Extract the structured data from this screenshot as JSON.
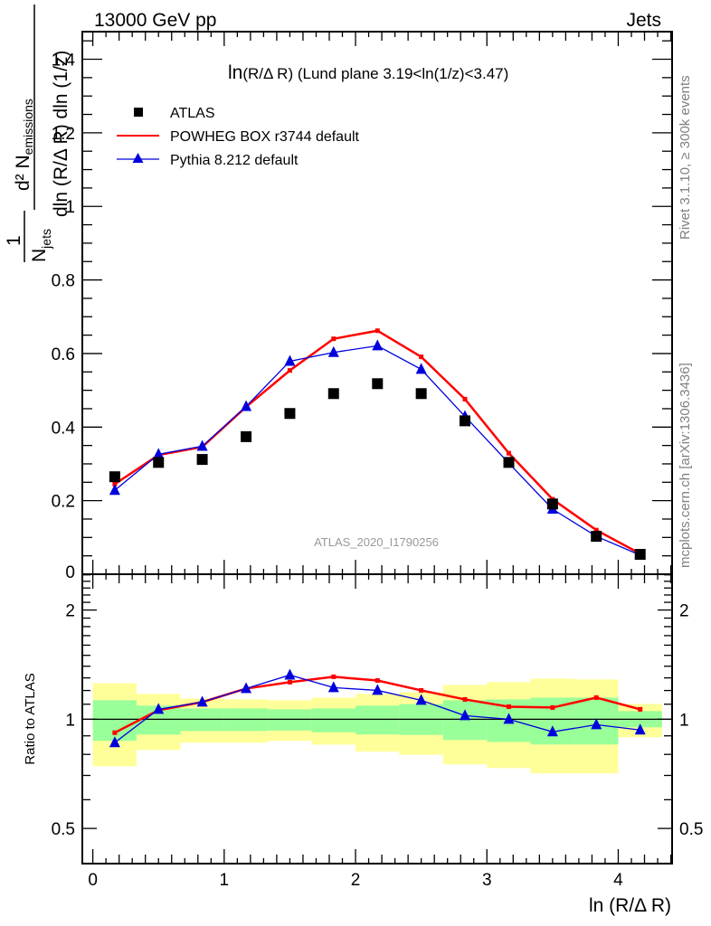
{
  "header": {
    "left_label": "13000 GeV pp",
    "right_label": "Jets"
  },
  "side_text": {
    "rivet": "Rivet 3.1.10, ≥ 300k events",
    "mcplots": "mcplots.cern.ch [arXiv:1306.3436]"
  },
  "watermark": "ATLAS_2020_I1790256",
  "colors": {
    "data": "#000000",
    "powheg": "#ff0000",
    "pythia": "#0000dd",
    "band_inner": "#99ff99",
    "band_outer": "#ffff99",
    "watermark": "#999999",
    "side_text": "#808080"
  },
  "chart_data": [
    {
      "type": "scatter",
      "title": "ln(R/Δ R) (Lund plane 3.19<ln(1/z)<3.47)",
      "title_parts": {
        "prefix": "ln",
        "rest": "(R/Δ R) (Lund plane 3.19<ln(1/z)<3.47)"
      },
      "xlabel": "ln (R/Δ R)",
      "ylabel": {
        "numerator_1": "1",
        "den_1": "N",
        "den_1_sub": "jets",
        "numerator_2": "d² N",
        "numerator_2_sub": "emissions",
        "denominator_2": "dln (R/Δ R) dln (1/z)"
      },
      "xlim": [
        -0.08,
        4.41
      ],
      "ylim": [
        0,
        1.475
      ],
      "yticks_major": [
        0,
        0.2,
        0.4,
        0.6,
        0.8,
        1,
        1.2,
        1.4
      ],
      "ytick_labels": [
        "0",
        "0.2",
        "0.4",
        "0.6",
        "0.8",
        "1",
        "1.2",
        "1.4"
      ],
      "x": [
        0.167,
        0.5,
        0.833,
        1.167,
        1.5,
        1.833,
        2.167,
        2.5,
        2.833,
        3.167,
        3.5,
        3.833,
        4.167
      ],
      "legend": {
        "placement": "top-left",
        "entries": [
          {
            "name": "ATLAS",
            "marker": "square"
          },
          {
            "name": "POWHEG BOX r3744 default",
            "marker": "line"
          },
          {
            "name": "Pythia 8.212 default",
            "marker": "triangle"
          }
        ]
      },
      "series": [
        {
          "name": "ATLAS",
          "style": "square",
          "values": [
            0.265,
            0.304,
            0.312,
            0.374,
            0.437,
            0.491,
            0.518,
            0.491,
            0.417,
            0.304,
            0.191,
            0.103,
            0.054
          ]
        },
        {
          "name": "POWHEG BOX r3744 default",
          "style": "line",
          "values": [
            0.245,
            0.324,
            0.346,
            0.455,
            0.554,
            0.64,
            0.662,
            0.591,
            0.476,
            0.329,
            0.204,
            0.12,
            0.056
          ]
        },
        {
          "name": "Pythia 8.212 default",
          "style": "triangle",
          "values": [
            0.228,
            0.326,
            0.348,
            0.456,
            0.579,
            0.603,
            0.621,
            0.557,
            0.429,
            0.302,
            0.177,
            0.103,
            0.052
          ]
        }
      ]
    },
    {
      "type": "line",
      "title": "",
      "xlabel": "ln (R/Δ R)",
      "ylabel": "Ratio to ATLAS",
      "yscale": "log",
      "xlim": [
        -0.08,
        4.41
      ],
      "ylim": [
        0.4,
        2.51
      ],
      "xticks": [
        0,
        1,
        2,
        3,
        4
      ],
      "xtick_labels": [
        "0",
        "1",
        "2",
        "3",
        "4"
      ],
      "yticks_labeled": [
        0.5,
        1,
        2
      ],
      "ytick_labels": [
        "0.5",
        "1",
        "2"
      ],
      "reference_line": 1,
      "bin_edges": [
        0,
        0.333,
        0.667,
        1.0,
        1.333,
        1.667,
        2.0,
        2.333,
        2.667,
        3.0,
        3.333,
        3.667,
        4.0,
        4.333
      ],
      "x": [
        0.167,
        0.5,
        0.833,
        1.167,
        1.5,
        1.833,
        2.167,
        2.5,
        2.833,
        3.167,
        3.5,
        3.833,
        4.167
      ],
      "bands": {
        "inner_green": {
          "lo": [
            0.872,
            0.907,
            0.928,
            0.928,
            0.931,
            0.921,
            0.908,
            0.905,
            0.877,
            0.866,
            0.852,
            0.852,
            0.95
          ],
          "hi": [
            1.128,
            1.09,
            1.071,
            1.071,
            1.065,
            1.071,
            1.09,
            1.101,
            1.128,
            1.134,
            1.147,
            1.147,
            1.053
          ]
        },
        "outer_yellow": {
          "lo": [
            0.742,
            0.823,
            0.862,
            0.862,
            0.872,
            0.851,
            0.814,
            0.798,
            0.751,
            0.734,
            0.709,
            0.709,
            0.892
          ],
          "hi": [
            1.257,
            1.174,
            1.14,
            1.134,
            1.128,
            1.147,
            1.174,
            1.187,
            1.243,
            1.265,
            1.294,
            1.287,
            1.102
          ]
        }
      },
      "series": [
        {
          "name": "POWHEG BOX r3744 default",
          "style": "line",
          "values": [
            0.918,
            1.059,
            1.115,
            1.215,
            1.265,
            1.309,
            1.279,
            1.201,
            1.134,
            1.083,
            1.077,
            1.147,
            1.065
          ]
        },
        {
          "name": "Pythia 8.212 default",
          "style": "triangle",
          "values": [
            0.862,
            1.065,
            1.115,
            1.215,
            1.324,
            1.222,
            1.201,
            1.128,
            1.023,
            1.0,
            0.923,
            0.966,
            0.934
          ]
        }
      ]
    }
  ]
}
